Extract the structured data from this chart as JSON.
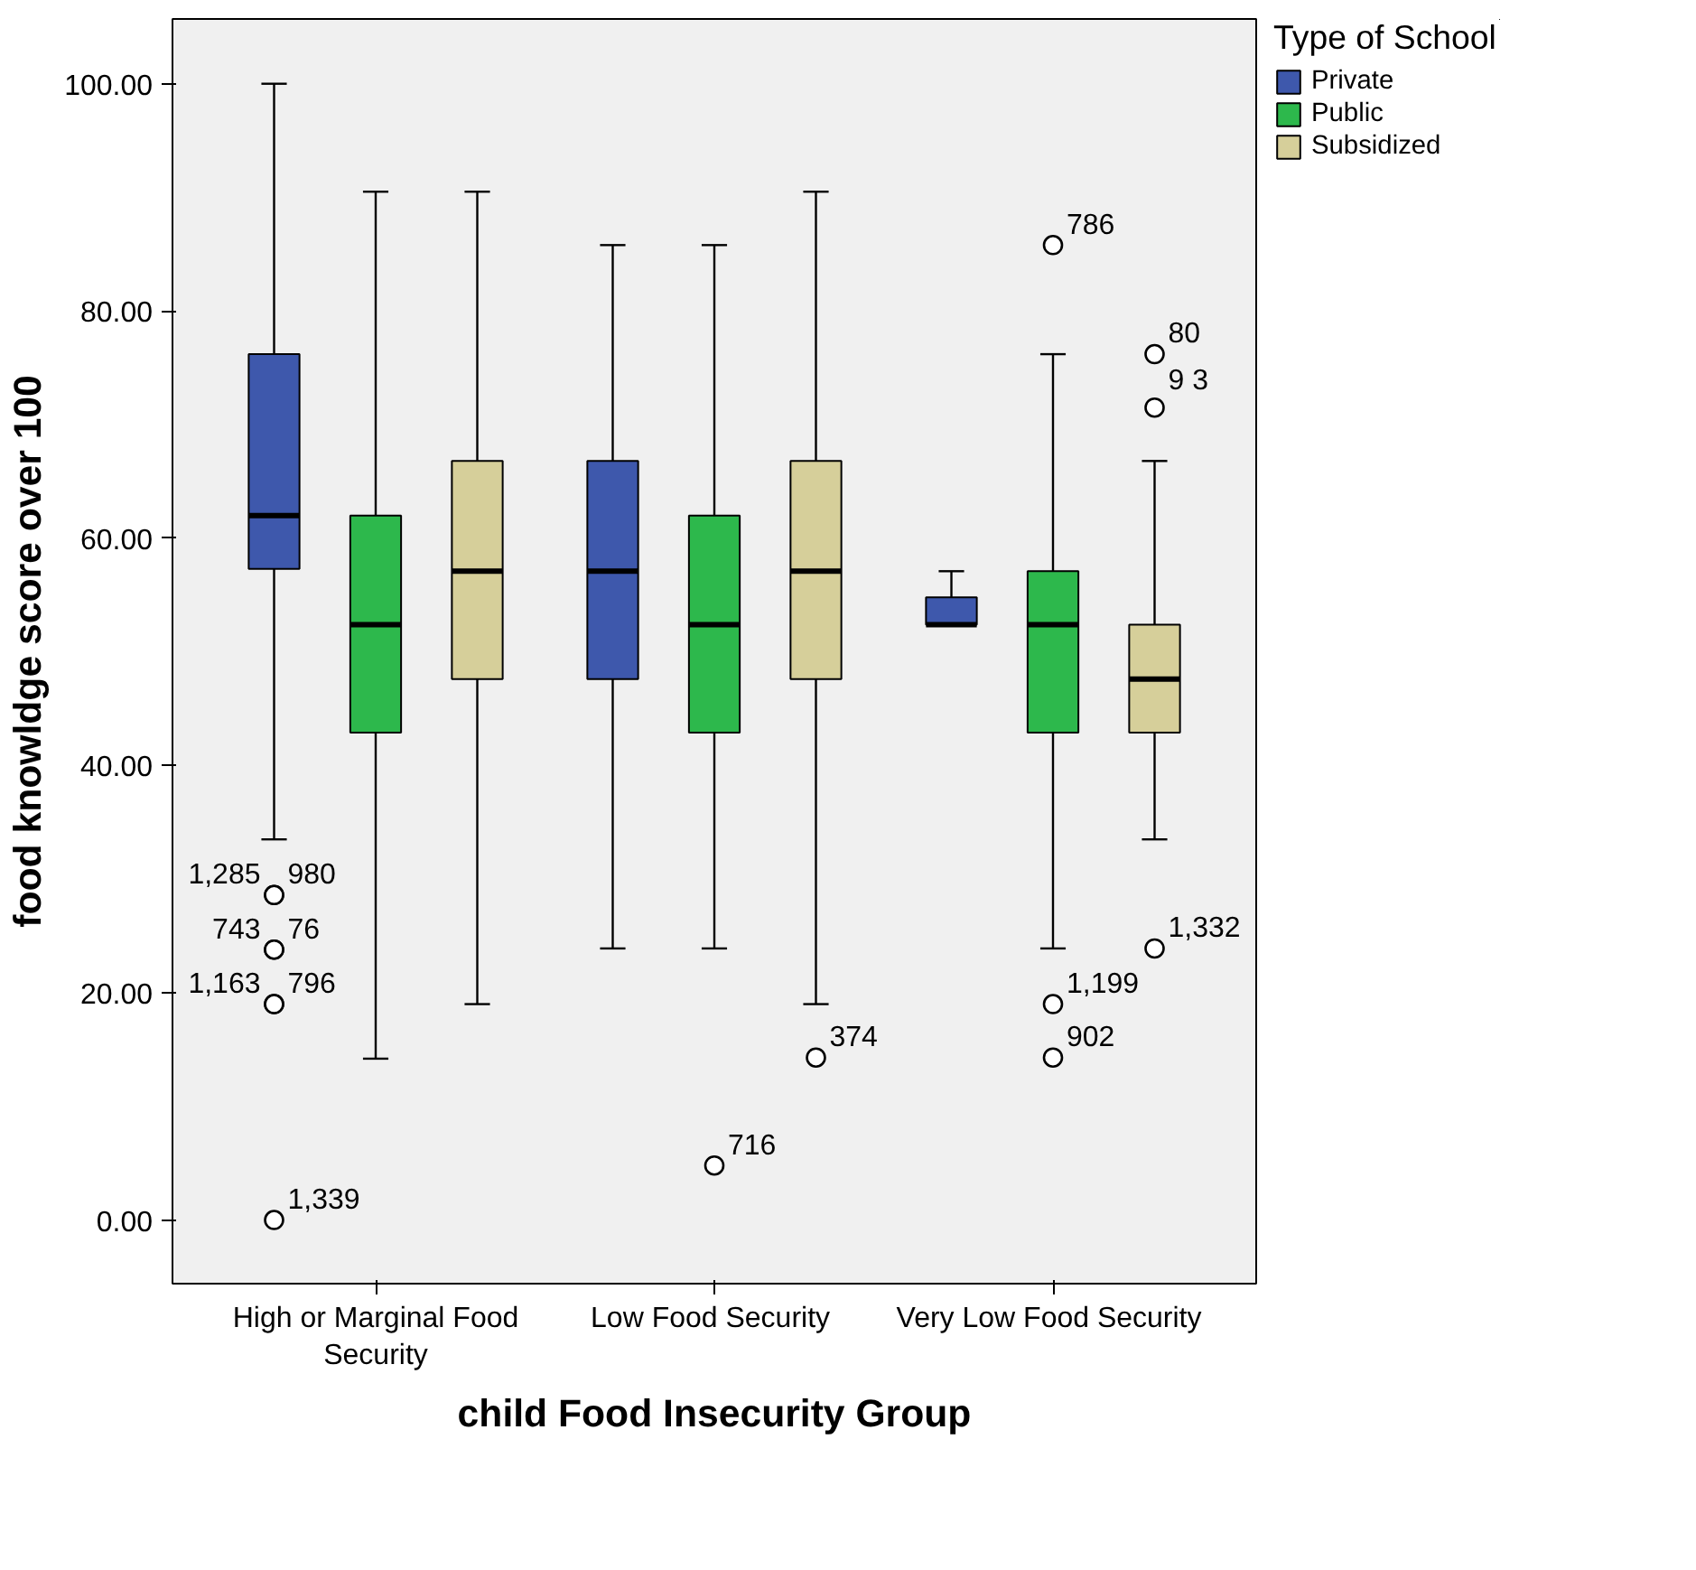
{
  "chart_data": {
    "type": "box",
    "xlabel": "child Food Insecurity Group",
    "ylabel": "food knowldge score over 100",
    "legend_title": "Type of School",
    "categories": [
      "High or Marginal Food Security",
      "Low  Food Security",
      "Very Low  Food Security"
    ],
    "series": [
      {
        "name": "Private",
        "color": "#3e58ac",
        "boxes": [
          {
            "low": 33.5,
            "q1": 57.3,
            "median": 62.0,
            "q3": 76.2,
            "high": 100,
            "outliers": [
              28.6,
              28.6,
              23.8,
              23.8,
              19.0,
              19.0,
              0
            ]
          },
          {
            "low": 23.9,
            "q1": 47.6,
            "median": 57.1,
            "q3": 66.8,
            "high": 85.8
          },
          {
            "low": 52.4,
            "q1": 52.4,
            "median": 52.4,
            "q3": 54.8,
            "high": 57.1
          }
        ]
      },
      {
        "name": "Public",
        "color": "#2db84c",
        "boxes": [
          {
            "low": 14.2,
            "q1": 42.9,
            "median": 52.4,
            "q3": 62.0,
            "high": 90.5
          },
          {
            "low": 23.9,
            "q1": 42.9,
            "median": 52.4,
            "q3": 62.0,
            "high": 85.8,
            "outliers": [
              4.8
            ]
          },
          {
            "low": 23.9,
            "q1": 42.9,
            "median": 52.4,
            "q3": 57.1,
            "high": 76.2,
            "outliers": [
              85.8,
              19.0,
              14.3
            ]
          }
        ]
      },
      {
        "name": "Subsidized",
        "color": "#d6cf9a",
        "boxes": [
          {
            "low": 19.0,
            "q1": 47.6,
            "median": 57.1,
            "q3": 66.8,
            "high": 90.5
          },
          {
            "low": 19.0,
            "q1": 47.6,
            "median": 57.1,
            "q3": 66.8,
            "high": 90.5,
            "outliers": [
              14.3
            ]
          },
          {
            "low": 33.5,
            "q1": 42.9,
            "median": 47.6,
            "q3": 52.4,
            "high": 66.8,
            "outliers": [
              76.2,
              71.5,
              23.9
            ]
          }
        ]
      }
    ],
    "annotations": [
      "1,285",
      "980",
      "743",
      "76",
      "1,163",
      "796",
      "1,339",
      "716",
      "786",
      "1,199",
      "902",
      "374",
      "80",
      "9 3",
      "1,332"
    ],
    "ylim": [
      -5.6,
      105.7
    ],
    "yticks": [
      {
        "value": 0,
        "label": "0.00"
      },
      {
        "value": 20,
        "label": "20.00"
      },
      {
        "value": 40,
        "label": "40.00"
      },
      {
        "value": 60,
        "label": "60.00"
      },
      {
        "value": 80,
        "label": "80.00"
      },
      {
        "value": 100,
        "label": "100.00"
      }
    ],
    "grid": false,
    "legend": "right",
    "marker": "circle"
  }
}
